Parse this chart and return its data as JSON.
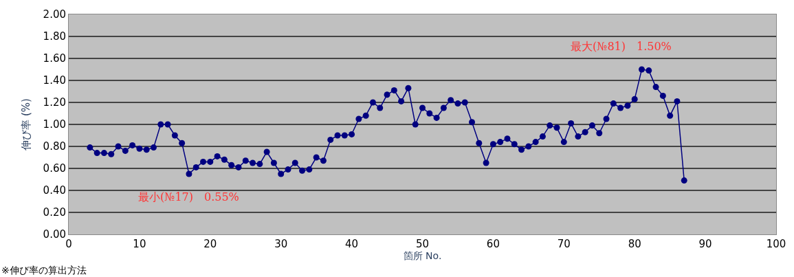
{
  "chart_data": {
    "type": "line",
    "xlabel": "箇所 No.",
    "ylabel": "伸び率 (%)",
    "x": [
      3,
      4,
      5,
      6,
      7,
      8,
      9,
      10,
      11,
      12,
      13,
      14,
      15,
      16,
      17,
      18,
      19,
      20,
      21,
      22,
      23,
      24,
      25,
      26,
      27,
      28,
      29,
      30,
      31,
      32,
      33,
      34,
      35,
      36,
      37,
      38,
      39,
      40,
      41,
      42,
      43,
      44,
      45,
      46,
      47,
      48,
      49,
      50,
      51,
      52,
      53,
      54,
      55,
      56,
      57,
      58,
      59,
      60,
      61,
      62,
      63,
      64,
      65,
      66,
      67,
      68,
      69,
      70,
      71,
      72,
      73,
      74,
      75,
      76,
      77,
      78,
      79,
      80,
      81,
      82,
      83,
      84,
      85,
      86,
      87
    ],
    "series": [
      {
        "color": "#000080",
        "values": [
          0.79,
          0.74,
          0.74,
          0.73,
          0.8,
          0.76,
          0.81,
          0.78,
          0.77,
          0.79,
          1.0,
          1.0,
          0.9,
          0.83,
          0.55,
          0.61,
          0.66,
          0.66,
          0.71,
          0.68,
          0.63,
          0.61,
          0.67,
          0.65,
          0.64,
          0.75,
          0.65,
          0.55,
          0.59,
          0.65,
          0.58,
          0.59,
          0.7,
          0.67,
          0.86,
          0.9,
          0.9,
          0.91,
          1.05,
          1.08,
          1.2,
          1.15,
          1.27,
          1.31,
          1.21,
          1.33,
          1.0,
          1.15,
          1.1,
          1.06,
          1.15,
          1.22,
          1.19,
          1.2,
          1.02,
          0.83,
          0.65,
          0.82,
          0.84,
          0.87,
          0.82,
          0.77,
          0.8,
          0.84,
          0.89,
          0.99,
          0.97,
          0.84,
          1.01,
          0.89,
          0.93,
          0.99,
          0.92,
          1.05,
          1.19,
          1.15,
          1.17,
          1.23,
          1.5,
          1.49,
          1.34,
          1.26,
          1.08,
          1.21,
          0.49
        ]
      }
    ],
    "xlim": [
      0,
      100
    ],
    "xticks": [
      0,
      10,
      20,
      30,
      40,
      50,
      60,
      70,
      80,
      90,
      100
    ],
    "ylim": [
      0,
      2
    ],
    "yticks": [
      {
        "value": 0,
        "label": "0.00"
      },
      {
        "value": 0.2,
        "label": "0.20"
      },
      {
        "value": 0.4,
        "label": "0.40"
      },
      {
        "value": 0.6,
        "label": "0.60"
      },
      {
        "value": 0.8,
        "label": "0.80"
      },
      {
        "value": 1.0,
        "label": "1.00"
      },
      {
        "value": 1.2,
        "label": "1.20"
      },
      {
        "value": 1.4,
        "label": "1.40"
      },
      {
        "value": 1.6,
        "label": "1.60"
      },
      {
        "value": 1.8,
        "label": "1.80"
      },
      {
        "value": 2.0,
        "label": "2.00"
      }
    ],
    "grid": "y",
    "marker": "circle",
    "line_style": "solid",
    "annotations": [
      {
        "text": "最小(№17)　0.55%",
        "x": 17,
        "y": 0.55
      },
      {
        "text": "最大(№81)　1.50%",
        "x": 81,
        "y": 1.5
      },
      "※伸び率の算出方法"
    ]
  }
}
